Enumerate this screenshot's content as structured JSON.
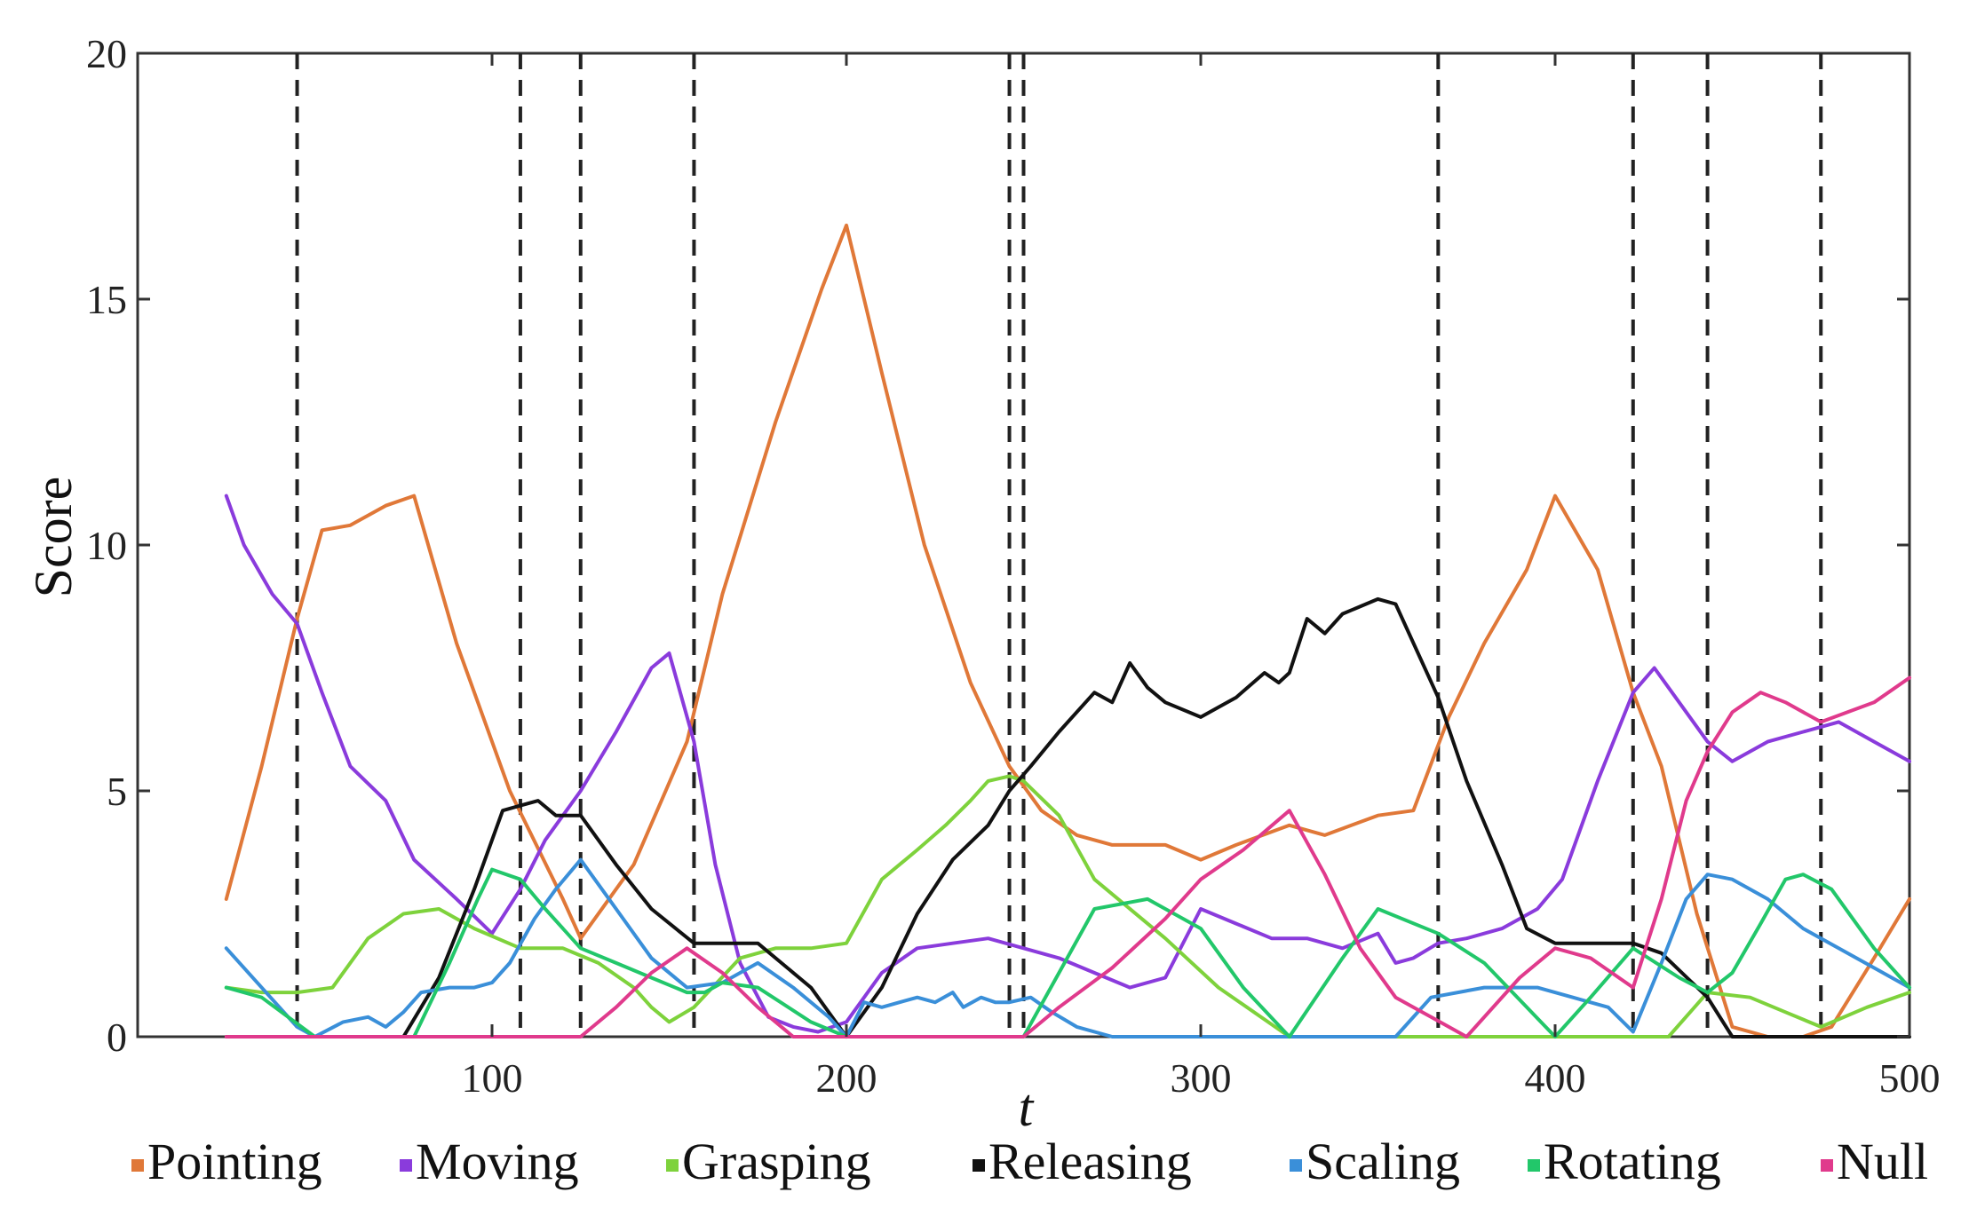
{
  "chart_data": {
    "type": "line",
    "title": "",
    "xlabel": "t",
    "ylabel": "Score",
    "xlim": [
      0,
      500
    ],
    "ylim": [
      0,
      20
    ],
    "xticks": [
      100,
      200,
      300,
      400,
      500
    ],
    "yticks": [
      0,
      5,
      10,
      15,
      20
    ],
    "grid": false,
    "legend_position": "bottom",
    "vlines": [
      45,
      108,
      125,
      157,
      246,
      250,
      367,
      422,
      443,
      475
    ],
    "series": [
      {
        "name": "Pointing",
        "color": "#e07838",
        "x": [
          25,
          35,
          45,
          52,
          60,
          70,
          78,
          90,
          105,
          120,
          125,
          140,
          155,
          165,
          180,
          193,
          200,
          210,
          222,
          235,
          246,
          255,
          265,
          275,
          290,
          300,
          310,
          325,
          335,
          350,
          360,
          370,
          380,
          392,
          400,
          412,
          422,
          430,
          440,
          450,
          460,
          470,
          478,
          490,
          500
        ],
        "values": [
          2.8,
          5.5,
          8.5,
          10.3,
          10.4,
          10.8,
          11.0,
          8.0,
          5.0,
          2.8,
          2.0,
          3.5,
          6.0,
          9.0,
          12.5,
          15.2,
          16.5,
          13.5,
          10.0,
          7.2,
          5.5,
          4.6,
          4.1,
          3.9,
          3.9,
          3.6,
          3.9,
          4.3,
          4.1,
          4.5,
          4.6,
          6.5,
          8.0,
          9.5,
          11.0,
          9.5,
          7.0,
          5.5,
          2.5,
          0.2,
          0,
          0,
          0.2,
          1.6,
          2.8
        ]
      },
      {
        "name": "Moving",
        "color": "#8a3bdc",
        "x": [
          25,
          30,
          38,
          45,
          52,
          60,
          70,
          78,
          90,
          100,
          108,
          115,
          125,
          135,
          145,
          150,
          157,
          163,
          170,
          178,
          185,
          192,
          200,
          210,
          220,
          230,
          240,
          250,
          260,
          270,
          280,
          290,
          300,
          310,
          320,
          330,
          340,
          350,
          355,
          360,
          367,
          375,
          385,
          395,
          402,
          412,
          422,
          428,
          435,
          443,
          450,
          460,
          470,
          480,
          490,
          500
        ],
        "values": [
          11.0,
          10.0,
          9.0,
          8.4,
          7.0,
          5.5,
          4.8,
          3.6,
          2.8,
          2.1,
          3.0,
          4.0,
          5.0,
          6.2,
          7.5,
          7.8,
          6.0,
          3.5,
          1.5,
          0.4,
          0.2,
          0.1,
          0.3,
          1.3,
          1.8,
          1.9,
          2.0,
          1.8,
          1.6,
          1.3,
          1.0,
          1.2,
          2.6,
          2.3,
          2.0,
          2.0,
          1.8,
          2.1,
          1.5,
          1.6,
          1.9,
          2.0,
          2.2,
          2.6,
          3.2,
          5.2,
          7.0,
          7.5,
          6.8,
          6.0,
          5.6,
          6.0,
          6.2,
          6.4,
          6.0,
          5.6
        ]
      },
      {
        "name": "Grasping",
        "color": "#7ed23c",
        "x": [
          25,
          35,
          45,
          55,
          65,
          75,
          85,
          95,
          108,
          120,
          130,
          140,
          145,
          150,
          157,
          170,
          180,
          190,
          200,
          210,
          220,
          228,
          235,
          240,
          246,
          250,
          260,
          270,
          290,
          305,
          325,
          340,
          367,
          380,
          400,
          420,
          432,
          443,
          455,
          465,
          475,
          488,
          500
        ],
        "values": [
          1.0,
          0.9,
          0.9,
          1.0,
          2.0,
          2.5,
          2.6,
          2.2,
          1.8,
          1.8,
          1.5,
          1.0,
          0.6,
          0.3,
          0.6,
          1.6,
          1.8,
          1.8,
          1.9,
          3.2,
          3.8,
          4.3,
          4.8,
          5.2,
          5.3,
          5.2,
          4.5,
          3.2,
          2.0,
          1.0,
          0,
          0,
          0,
          0,
          0,
          0,
          0,
          0.9,
          0.8,
          0.5,
          0.2,
          0.6,
          0.9
        ]
      },
      {
        "name": "Releasing",
        "color": "#111111",
        "x": [
          25,
          50,
          75,
          85,
          95,
          103,
          108,
          113,
          118,
          125,
          135,
          145,
          157,
          175,
          190,
          200,
          210,
          220,
          230,
          240,
          246,
          252,
          260,
          270,
          275,
          280,
          285,
          290,
          300,
          305,
          310,
          318,
          322,
          325,
          330,
          335,
          340,
          350,
          355,
          367,
          375,
          385,
          392,
          400,
          412,
          422,
          430,
          443,
          450,
          475,
          500
        ],
        "values": [
          0,
          0,
          0,
          1.2,
          3.0,
          4.6,
          4.7,
          4.8,
          4.5,
          4.5,
          3.5,
          2.6,
          1.9,
          1.9,
          1.0,
          0,
          1.0,
          2.5,
          3.6,
          4.3,
          5.0,
          5.5,
          6.2,
          7.0,
          6.8,
          7.6,
          7.1,
          6.8,
          6.5,
          6.7,
          6.9,
          7.4,
          7.2,
          7.4,
          8.5,
          8.2,
          8.6,
          8.9,
          8.8,
          6.9,
          5.2,
          3.5,
          2.2,
          1.9,
          1.9,
          1.9,
          1.7,
          0.8,
          0,
          0,
          0
        ]
      },
      {
        "name": "Scaling",
        "color": "#3a8fd9",
        "x": [
          25,
          35,
          45,
          50,
          58,
          65,
          70,
          75,
          80,
          88,
          95,
          100,
          105,
          112,
          118,
          125,
          135,
          145,
          155,
          165,
          175,
          185,
          195,
          200,
          205,
          210,
          215,
          220,
          225,
          230,
          233,
          238,
          242,
          246,
          252,
          258,
          265,
          275,
          300,
          330,
          355,
          365,
          380,
          395,
          405,
          415,
          422,
          430,
          437,
          443,
          450,
          460,
          470,
          480,
          490,
          500
        ],
        "values": [
          1.8,
          1.0,
          0.2,
          0,
          0.3,
          0.4,
          0.2,
          0.5,
          0.9,
          1.0,
          1.0,
          1.1,
          1.5,
          2.4,
          3.0,
          3.6,
          2.6,
          1.6,
          1.0,
          1.1,
          1.5,
          1.0,
          0.4,
          0,
          0.7,
          0.6,
          0.7,
          0.8,
          0.7,
          0.9,
          0.6,
          0.8,
          0.7,
          0.7,
          0.8,
          0.5,
          0.2,
          0,
          0,
          0,
          0,
          0.8,
          1.0,
          1.0,
          0.8,
          0.6,
          0.1,
          1.5,
          2.8,
          3.3,
          3.2,
          2.8,
          2.2,
          1.8,
          1.4,
          1.0
        ]
      },
      {
        "name": "Rotating",
        "color": "#22c76a",
        "x": [
          25,
          35,
          50,
          60,
          70,
          78,
          88,
          96,
          100,
          108,
          115,
          125,
          135,
          145,
          155,
          160,
          165,
          175,
          190,
          200,
          220,
          250,
          260,
          270,
          285,
          300,
          312,
          325,
          340,
          350,
          367,
          380,
          392,
          400,
          410,
          422,
          435,
          443,
          450,
          458,
          465,
          470,
          478,
          490,
          500
        ],
        "values": [
          1.0,
          0.8,
          0,
          0,
          0,
          0,
          1.5,
          2.8,
          3.4,
          3.2,
          2.6,
          1.8,
          1.5,
          1.2,
          0.9,
          0.9,
          1.1,
          1.0,
          0.3,
          0,
          0,
          0,
          1.3,
          2.6,
          2.8,
          2.2,
          1.0,
          0,
          1.6,
          2.6,
          2.1,
          1.5,
          0.6,
          0,
          0.8,
          1.8,
          1.2,
          0.9,
          1.3,
          2.3,
          3.2,
          3.3,
          3.0,
          1.8,
          1.0
        ]
      },
      {
        "name": "Null",
        "color": "#e03a8c",
        "x": [
          25,
          40,
          60,
          80,
          100,
          120,
          125,
          135,
          145,
          155,
          165,
          175,
          185,
          250,
          260,
          275,
          290,
          300,
          312,
          325,
          335,
          345,
          355,
          365,
          375,
          390,
          400,
          410,
          422,
          430,
          437,
          443,
          450,
          458,
          465,
          475,
          490,
          500
        ],
        "values": [
          0,
          0,
          0,
          0,
          0,
          0,
          0,
          0.6,
          1.3,
          1.8,
          1.3,
          0.6,
          0,
          0,
          0.6,
          1.4,
          2.4,
          3.2,
          3.8,
          4.6,
          3.3,
          1.8,
          0.8,
          0.4,
          0,
          1.2,
          1.8,
          1.6,
          1.0,
          2.8,
          4.8,
          5.8,
          6.6,
          7.0,
          6.8,
          6.4,
          6.8,
          7.3
        ]
      }
    ]
  }
}
